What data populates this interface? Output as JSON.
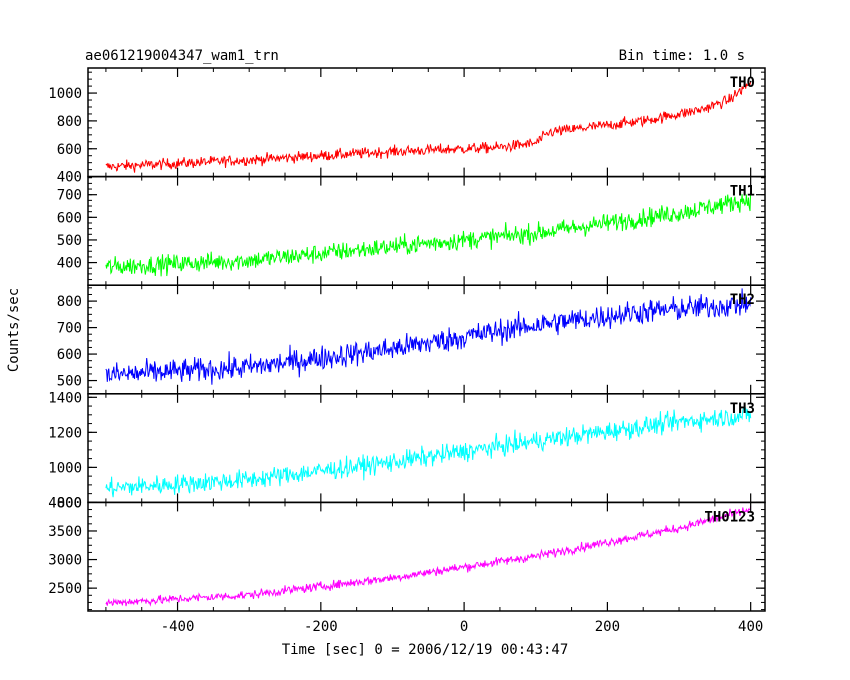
{
  "header": {
    "title": "ae061219004347_wam1_trn",
    "bin_time": "Bin time: 1.0 s"
  },
  "chart_data": {
    "type": "line",
    "ylabel": "Counts/sec",
    "xlabel": "Time [sec] 0 = 2006/12/19 00:43:47",
    "xlim": [
      -525,
      420
    ],
    "x_ticks": [
      -400,
      -200,
      0,
      200,
      400
    ],
    "x_start": -500,
    "x_end": 400,
    "panels": [
      {
        "name": "TH0",
        "color": "#ff0000",
        "ylim": [
          400,
          1180
        ],
        "y_ticks": [
          400,
          600,
          800,
          1000
        ],
        "trend": [
          [
            -500,
            470
          ],
          [
            -300,
            520
          ],
          [
            -100,
            580
          ],
          [
            50,
            610
          ],
          [
            100,
            640
          ],
          [
            120,
            720
          ],
          [
            250,
            800
          ],
          [
            330,
            880
          ],
          [
            370,
            950
          ],
          [
            400,
            1080
          ]
        ],
        "noise": 28
      },
      {
        "name": "TH1",
        "color": "#00ff00",
        "ylim": [
          300,
          780
        ],
        "y_ticks": [
          400,
          500,
          600,
          700
        ],
        "trend": [
          [
            -500,
            380
          ],
          [
            -300,
            410
          ],
          [
            -100,
            470
          ],
          [
            100,
            530
          ],
          [
            300,
            620
          ],
          [
            400,
            680
          ]
        ],
        "noise": 30
      },
      {
        "name": "TH2",
        "color": "#0000ff",
        "ylim": [
          450,
          860
        ],
        "y_ticks": [
          500,
          600,
          700,
          800
        ],
        "trend": [
          [
            -500,
            520
          ],
          [
            -300,
            550
          ],
          [
            -100,
            620
          ],
          [
            100,
            710
          ],
          [
            250,
            760
          ],
          [
            400,
            790
          ]
        ],
        "noise": 33
      },
      {
        "name": "TH3",
        "color": "#00ffff",
        "ylim": [
          800,
          1420
        ],
        "y_ticks": [
          800,
          1000,
          1200,
          1400
        ],
        "trend": [
          [
            -500,
            880
          ],
          [
            -300,
            930
          ],
          [
            -100,
            1030
          ],
          [
            100,
            1150
          ],
          [
            300,
            1260
          ],
          [
            400,
            1300
          ]
        ],
        "noise": 40
      },
      {
        "name": "TH0123",
        "color": "#ff00ff",
        "ylim": [
          2100,
          4000
        ],
        "y_ticks": [
          2500,
          3000,
          3500,
          4000
        ],
        "trend": [
          [
            -500,
            2240
          ],
          [
            -300,
            2380
          ],
          [
            -100,
            2680
          ],
          [
            100,
            3060
          ],
          [
            300,
            3550
          ],
          [
            400,
            3880
          ]
        ],
        "noise": 55
      }
    ]
  }
}
